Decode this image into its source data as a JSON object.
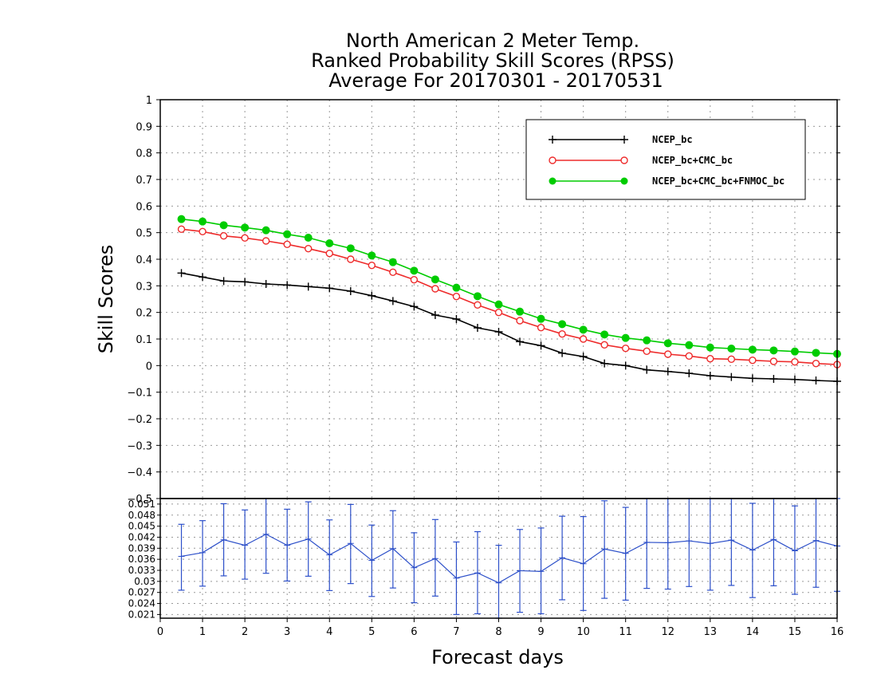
{
  "chart_data": [
    {
      "type": "line",
      "title": [
        "North American 2 Meter Temp.",
        "Ranked Probability Skill Scores (RPSS)",
        "Average For 20170301 - 20170531"
      ],
      "ylabel": "Skill Scores",
      "xlabel": "Forecast days",
      "ylim": [
        -0.5,
        1
      ],
      "yticks": [
        1,
        0.9,
        0.8,
        0.7,
        0.6,
        0.5,
        0.4,
        0.3,
        0.2,
        0.1,
        0,
        -0.1,
        -0.2,
        -0.3,
        -0.4,
        -0.5
      ],
      "xlim": [
        0,
        16
      ],
      "grid": true,
      "legend_position": "top-right",
      "x": [
        0.5,
        1,
        1.5,
        2,
        2.5,
        3,
        3.5,
        4,
        4.5,
        5,
        5.5,
        6,
        6.5,
        7,
        7.5,
        8,
        8.5,
        9,
        9.5,
        10,
        10.5,
        11,
        11.5,
        12,
        12.5,
        13,
        13.5,
        14,
        14.5,
        15,
        15.5,
        16
      ],
      "series": [
        {
          "name": "NCEP_bc",
          "color": "#000000",
          "marker": "plus",
          "values": [
            0.348,
            0.333,
            0.318,
            0.315,
            0.307,
            0.303,
            0.297,
            0.291,
            0.28,
            0.263,
            0.243,
            0.222,
            0.19,
            0.175,
            0.142,
            0.127,
            0.09,
            0.075,
            0.047,
            0.034,
            0.008,
            0.0,
            -0.016,
            -0.022,
            -0.029,
            -0.038,
            -0.043,
            -0.048,
            -0.05,
            -0.052,
            -0.056,
            -0.059
          ]
        },
        {
          "name": "NCEP_bc+CMC_bc",
          "color": "#ee2b2b",
          "marker": "open-circle",
          "values": [
            0.513,
            0.504,
            0.488,
            0.48,
            0.469,
            0.456,
            0.44,
            0.422,
            0.4,
            0.377,
            0.351,
            0.323,
            0.289,
            0.26,
            0.228,
            0.2,
            0.169,
            0.143,
            0.119,
            0.1,
            0.078,
            0.065,
            0.054,
            0.043,
            0.036,
            0.026,
            0.024,
            0.02,
            0.016,
            0.014,
            0.008,
            0.004
          ]
        },
        {
          "name": "NCEP_bc+CMC_bc+FNMOC_bc",
          "color": "#00cc00",
          "marker": "filled-circle",
          "values": [
            0.551,
            0.542,
            0.528,
            0.519,
            0.509,
            0.494,
            0.481,
            0.46,
            0.441,
            0.414,
            0.389,
            0.357,
            0.324,
            0.293,
            0.261,
            0.23,
            0.203,
            0.176,
            0.156,
            0.135,
            0.117,
            0.104,
            0.095,
            0.084,
            0.077,
            0.068,
            0.064,
            0.06,
            0.057,
            0.053,
            0.048,
            0.044
          ]
        }
      ]
    },
    {
      "type": "line",
      "error_bars": true,
      "ylim": [
        0.02,
        0.0525
      ],
      "yticks": [
        0.051,
        0.048,
        0.045,
        0.042,
        0.039,
        0.036,
        0.033,
        0.03,
        0.027,
        0.024,
        0.021
      ],
      "xlim": [
        0,
        16
      ],
      "xticks": [
        0,
        1,
        2,
        3,
        4,
        5,
        6,
        7,
        8,
        9,
        10,
        11,
        12,
        13,
        14,
        15,
        16
      ],
      "grid": true,
      "color": "#2c4fc9",
      "x": [
        0.5,
        1,
        1.5,
        2,
        2.5,
        3,
        3.5,
        4,
        4.5,
        5,
        5.5,
        6,
        6.5,
        7,
        7.5,
        8,
        8.5,
        9,
        9.5,
        10,
        10.5,
        11,
        11.5,
        12,
        12.5,
        13,
        13.5,
        14,
        14.5,
        15,
        15.5,
        16
      ],
      "values": [
        0.0368,
        0.0378,
        0.0413,
        0.0398,
        0.0428,
        0.0398,
        0.0415,
        0.0372,
        0.0403,
        0.0357,
        0.0389,
        0.0337,
        0.0362,
        0.0309,
        0.0323,
        0.0296,
        0.0329,
        0.0327,
        0.0364,
        0.0348,
        0.0388,
        0.0376,
        0.0406,
        0.0405,
        0.041,
        0.0403,
        0.0412,
        0.0385,
        0.0414,
        0.0383,
        0.0411,
        0.0396
      ],
      "err_low": [
        0.0276,
        0.0287,
        0.0315,
        0.0306,
        0.0322,
        0.0301,
        0.0314,
        0.0275,
        0.0294,
        0.0259,
        0.0282,
        0.0242,
        0.026,
        0.021,
        0.0212,
        0.02,
        0.0216,
        0.0212,
        0.025,
        0.0221,
        0.0254,
        0.0249,
        0.0281,
        0.0279,
        0.0286,
        0.0276,
        0.0289,
        0.0256,
        0.0288,
        0.0265,
        0.0284,
        0.0273
      ],
      "err_high": [
        0.0455,
        0.0465,
        0.0511,
        0.0494,
        0.053,
        0.0496,
        0.0516,
        0.0467,
        0.0509,
        0.0453,
        0.0492,
        0.0432,
        0.0468,
        0.0407,
        0.0435,
        0.0398,
        0.0441,
        0.0445,
        0.0477,
        0.0476,
        0.0519,
        0.0501,
        0.053,
        0.053,
        0.053,
        0.053,
        0.053,
        0.0512,
        0.053,
        0.0505,
        0.053,
        0.0525
      ]
    }
  ]
}
